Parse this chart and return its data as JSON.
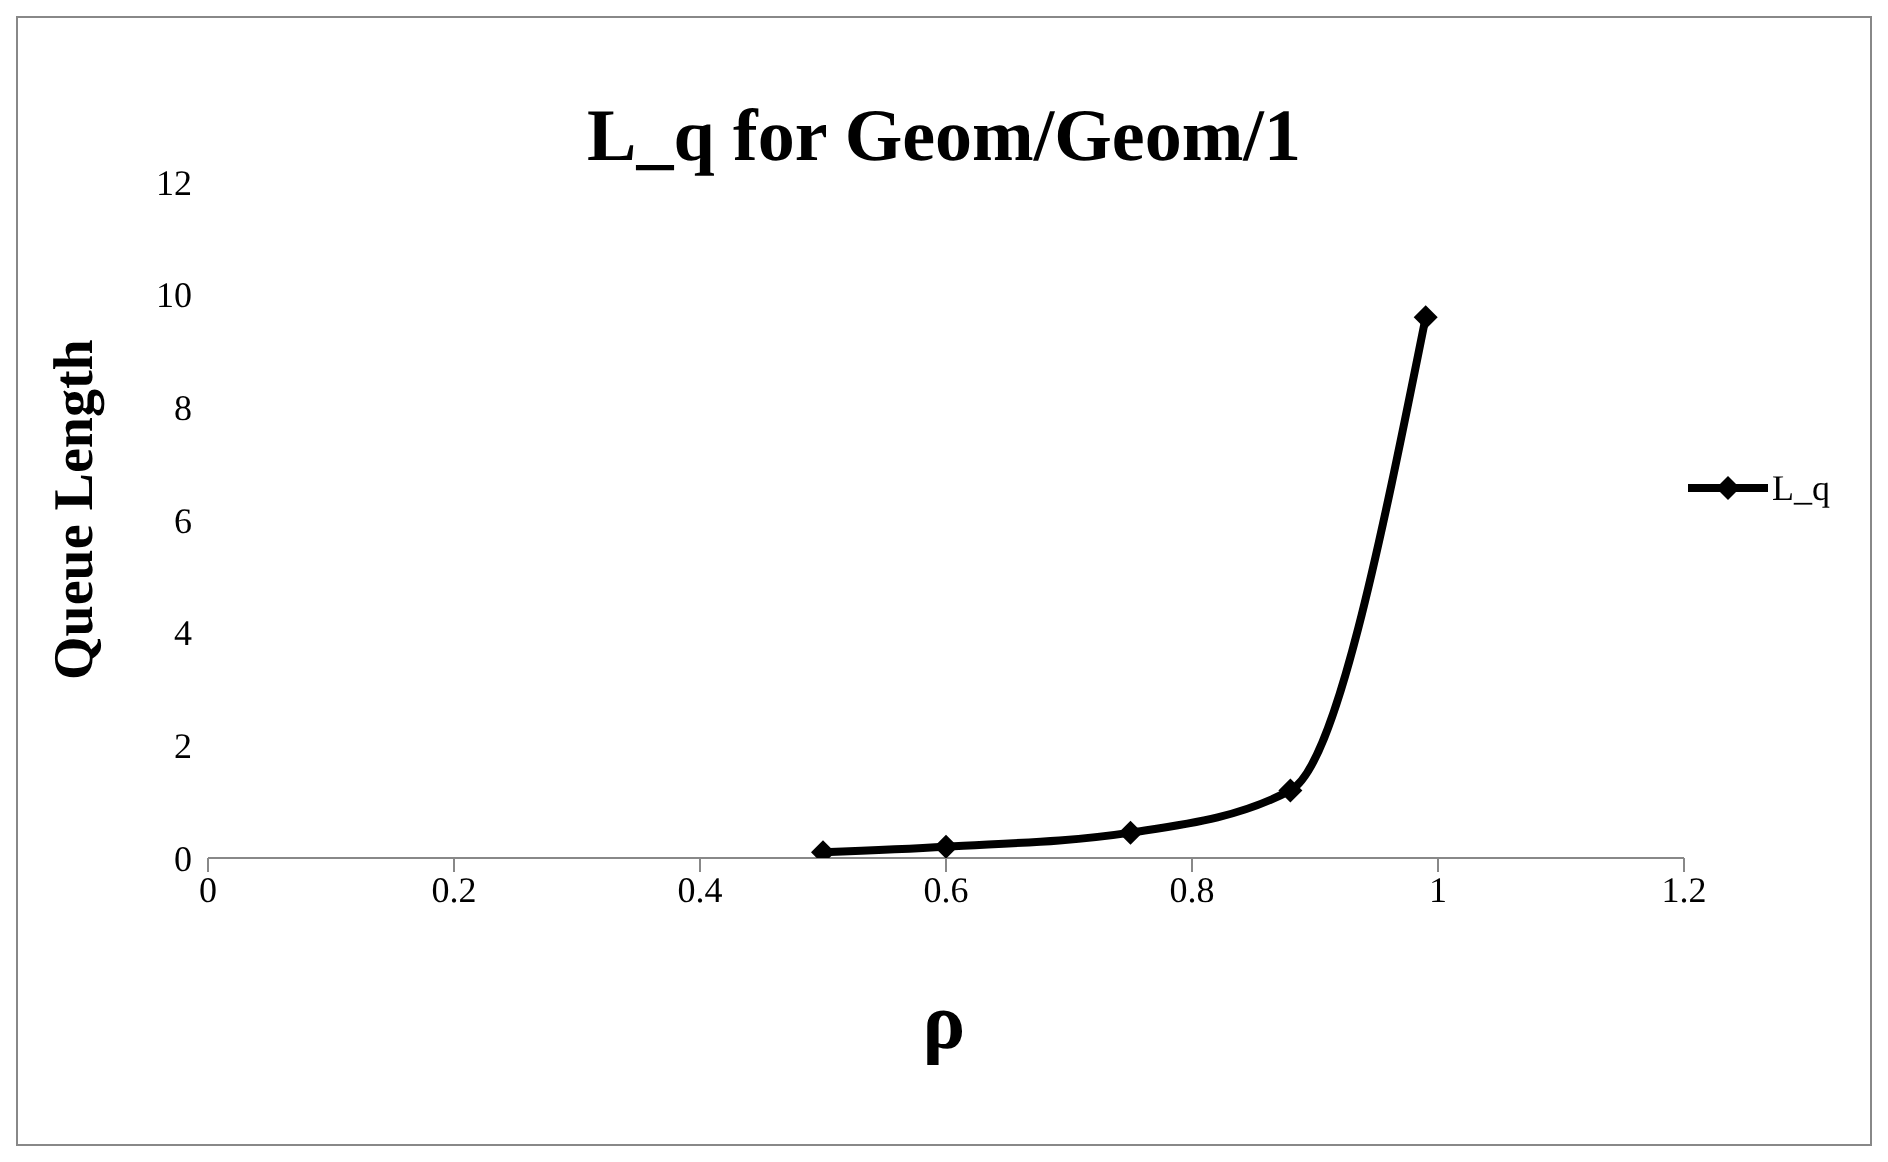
{
  "chart_data": {
    "type": "line",
    "title": "L_q for Geom/Geom/1",
    "xlabel": "ρ",
    "ylabel": "Queue Length",
    "x": [
      0.5,
      0.6,
      0.75,
      0.88,
      0.99
    ],
    "series": [
      {
        "name": "L_q",
        "color": "#000000",
        "values": [
          0.1,
          0.2,
          0.45,
          1.2,
          9.6
        ]
      }
    ],
    "xlim": [
      0,
      1.2
    ],
    "xticks": [
      0,
      0.2,
      0.4,
      0.6,
      0.8,
      1,
      1.2
    ],
    "ylim": [
      0,
      12
    ],
    "yticks": [
      0,
      2,
      4,
      6,
      8,
      10,
      12
    ],
    "grid": false,
    "legend": "right",
    "marker": "diamond",
    "line_style": "solid"
  }
}
